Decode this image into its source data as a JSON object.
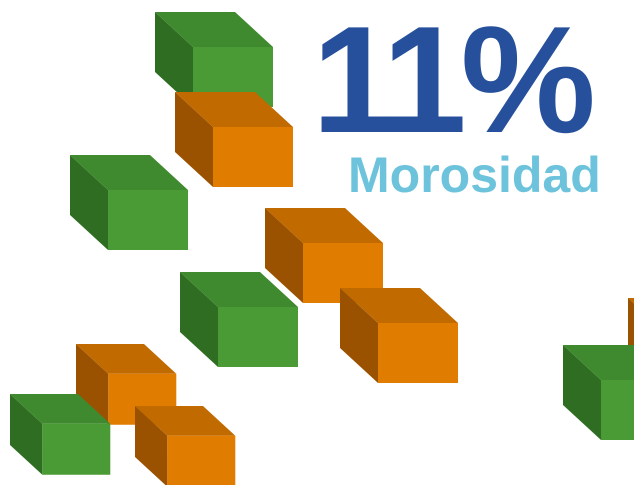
{
  "headline": {
    "figure": "11%",
    "label": "Morosidad"
  }
}
